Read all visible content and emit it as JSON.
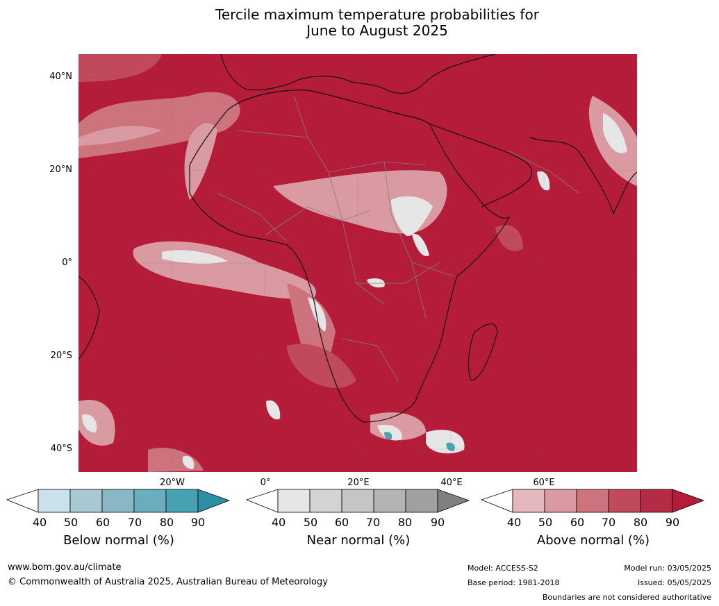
{
  "title": {
    "line1": "Tercile maximum temperature probabilities for",
    "line2": "June to August 2025"
  },
  "map": {
    "lat_labels": [
      "40°N",
      "20°N",
      "0°",
      "20°S",
      "40°S"
    ],
    "lon_labels": [
      "20°W",
      "0°",
      "20°E",
      "40°E",
      "60°E"
    ],
    "colors": {
      "ocean_land_above90": "#b41c3a",
      "above80": "#c04a5b",
      "above70": "#cd737e",
      "above60": "#d99aa2",
      "above50": "#e4b8bd",
      "near": "#e6e6e6",
      "below": "#4aa3b5",
      "coast": "#111111",
      "border": "#808080",
      "grid": "#555555"
    }
  },
  "legends": [
    {
      "title": "Below normal (%)",
      "ticks": [
        "40",
        "50",
        "60",
        "70",
        "80",
        "90"
      ],
      "colors": [
        "#ffffff",
        "#c9e2ea",
        "#a8c9d1",
        "#89b8c4",
        "#6aaebd",
        "#48a1b3",
        "#2d8fa6"
      ]
    },
    {
      "title": "Near normal (%)",
      "ticks": [
        "40",
        "50",
        "60",
        "70",
        "80",
        "90"
      ],
      "colors": [
        "#ffffff",
        "#e6e6e6",
        "#d3d3d3",
        "#c5c5c5",
        "#b4b4b4",
        "#a0a0a0",
        "#808080"
      ]
    },
    {
      "title": "Above normal (%)",
      "ticks": [
        "40",
        "50",
        "60",
        "70",
        "80",
        "90"
      ],
      "colors": [
        "#ffffff",
        "#e4b8bd",
        "#d99aa2",
        "#cd737e",
        "#c04a5b",
        "#b52a45",
        "#b41c3a"
      ]
    }
  ],
  "footer": {
    "url": "www.bom.gov.au/climate",
    "copyright": "© Commonwealth of Australia 2025, Australian Bureau of Meteorology",
    "model": "Model: ACCESS-S2",
    "base_period": "Base period: 1981-2018",
    "model_run": "Model run: 03/05/2025",
    "issued": "Issued: 05/05/2025",
    "disclaimer": "Boundaries are not considered authoritative"
  }
}
